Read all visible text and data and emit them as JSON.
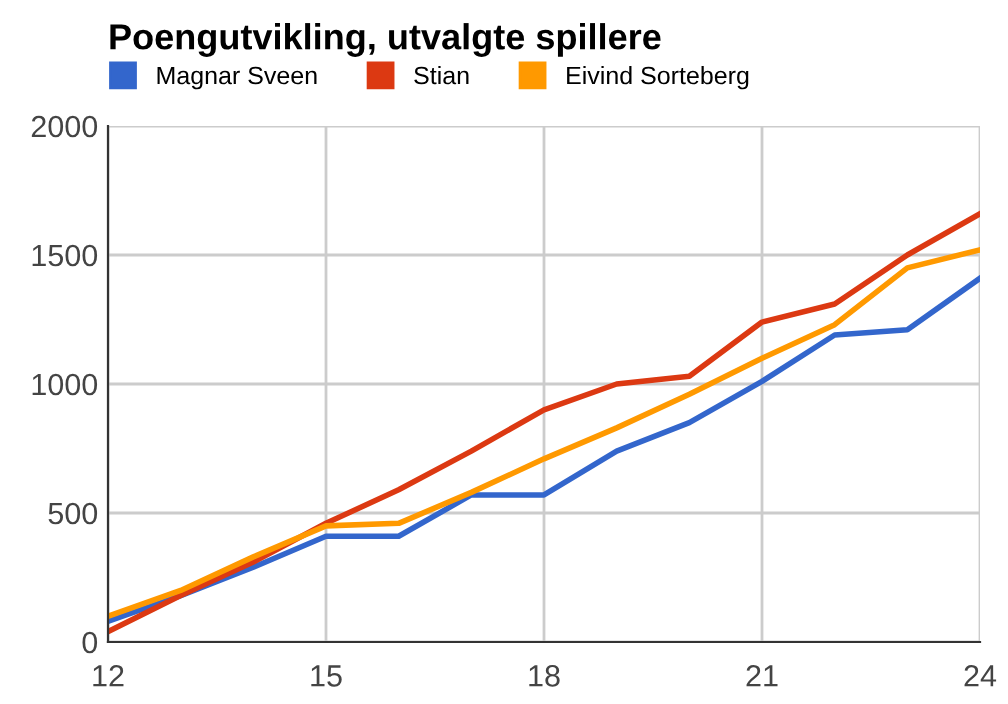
{
  "chart_data": {
    "type": "line",
    "title": "Poengutvikling, utvalgte spillere",
    "x": [
      12,
      13,
      14,
      15,
      16,
      17,
      18,
      19,
      20,
      21,
      22,
      23,
      24
    ],
    "series": [
      {
        "name": "Magnar Sveen",
        "color": "#3366cc",
        "values": [
          80,
          180,
          290,
          410,
          410,
          570,
          570,
          740,
          850,
          1010,
          1190,
          1210,
          1410
        ]
      },
      {
        "name": "Stian",
        "color": "#dc3912",
        "values": [
          40,
          180,
          310,
          460,
          590,
          740,
          900,
          1000,
          1030,
          1240,
          1310,
          1500,
          1660
        ]
      },
      {
        "name": "Eivind Sorteberg",
        "color": "#ff9900",
        "values": [
          100,
          200,
          330,
          450,
          460,
          580,
          710,
          830,
          960,
          1100,
          1230,
          1450,
          1520
        ]
      }
    ],
    "xlim": [
      12,
      24
    ],
    "xticks": [
      12,
      15,
      18,
      21,
      24
    ],
    "ylim": [
      0,
      2000
    ],
    "yticks": [
      0,
      500,
      1000,
      1500,
      2000
    ],
    "grid": true,
    "legend": "top left",
    "marker": "none",
    "line_style": "solid"
  }
}
